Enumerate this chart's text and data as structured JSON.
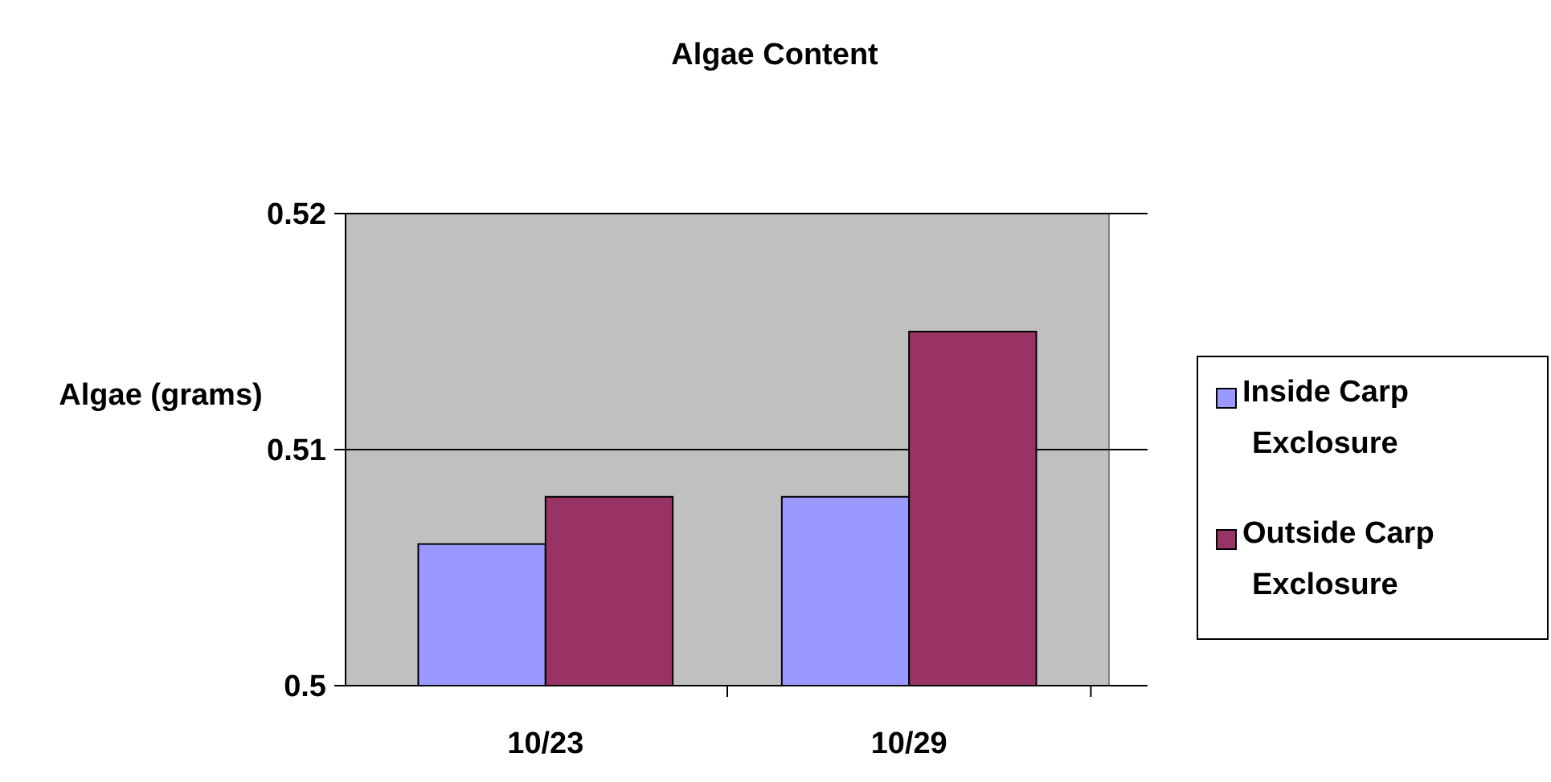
{
  "chart_data": {
    "type": "bar",
    "title": "Algae Content",
    "ylabel": "Algae (grams)",
    "categories": [
      "10/23",
      "10/29"
    ],
    "series": [
      {
        "name": "Inside Carp Exclosure",
        "color": "#9999ff",
        "values": [
          0.506,
          0.508
        ]
      },
      {
        "name": "Outside Carp Exclosure",
        "color": "#993366",
        "values": [
          0.508,
          0.515
        ]
      }
    ],
    "ylim": [
      0.5,
      0.52
    ],
    "yticks": [
      0.5,
      0.51,
      0.52
    ],
    "grid": "y",
    "legend": "right"
  }
}
